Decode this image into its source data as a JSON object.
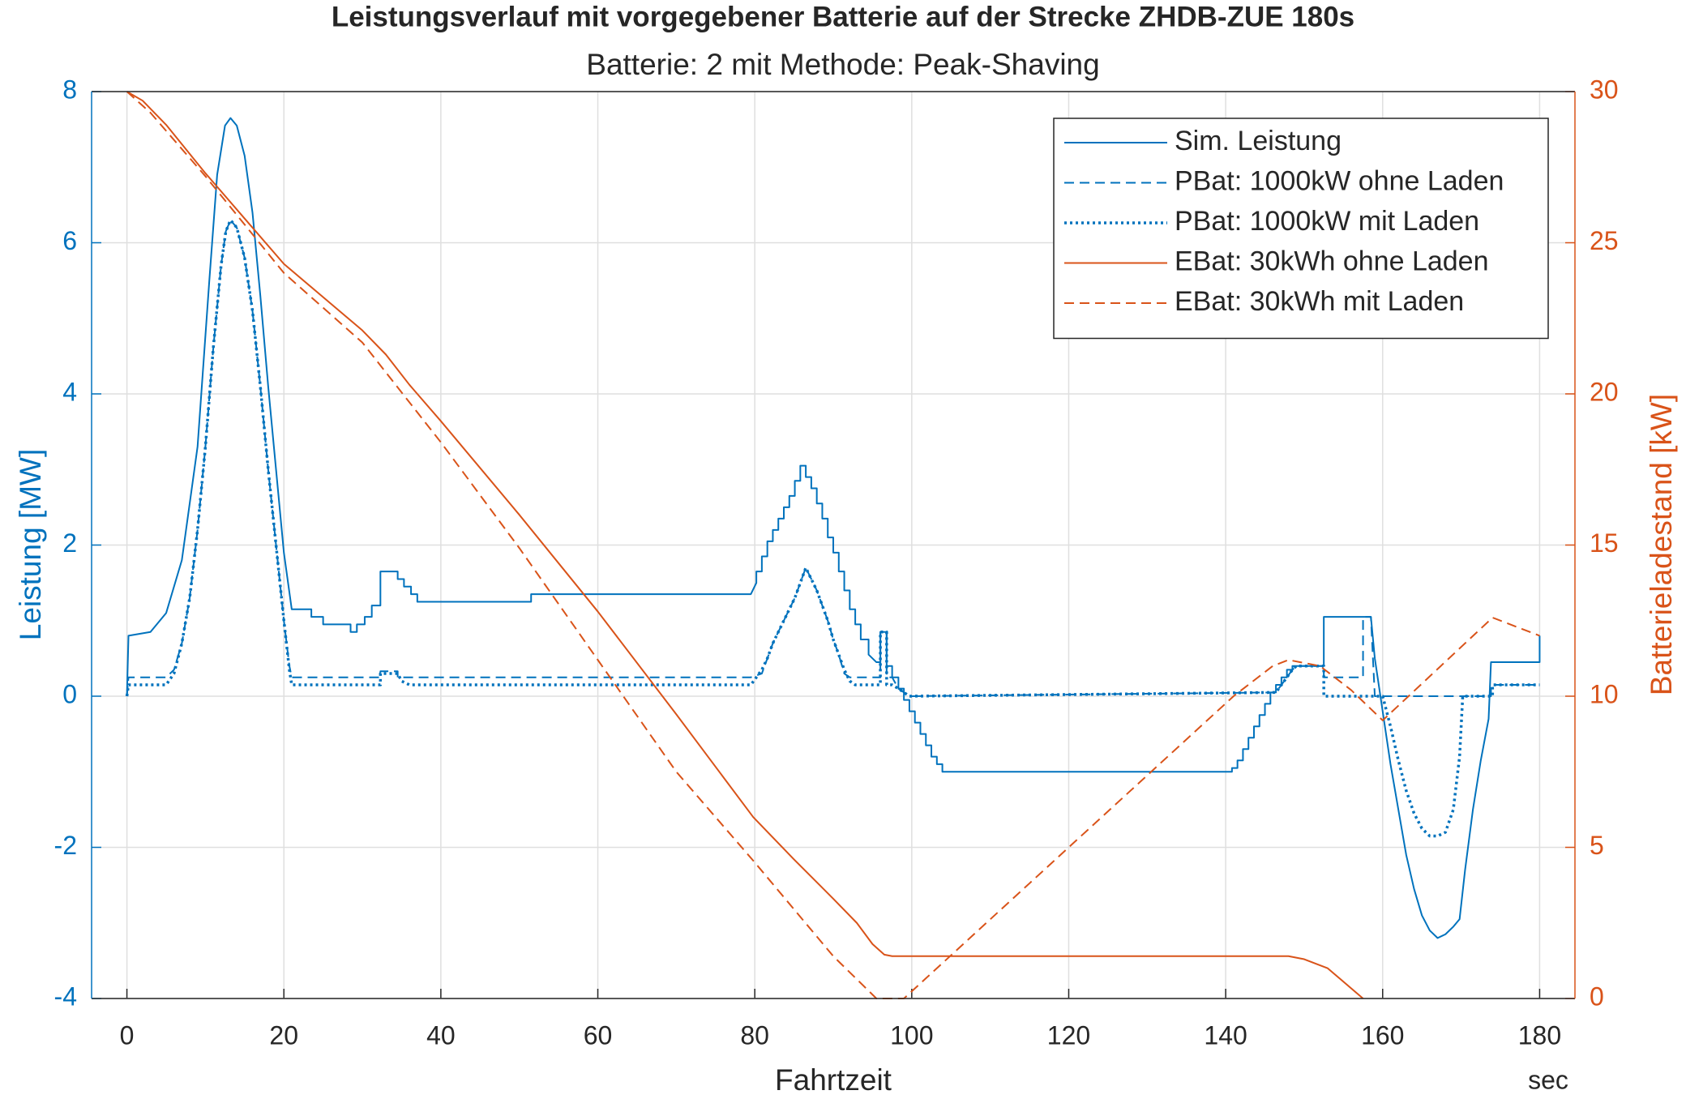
{
  "chart_data": {
    "type": "line",
    "title": "Leistungsverlauf mit vorgegebener Batterie auf der Strecke ZHDB-ZUE 180s",
    "subtitle": "Batterie: 2 mit Methode: Peak-Shaving",
    "xlabel": "Fahrtzeit",
    "xunit": "sec",
    "ylabel": "Leistung [MW]",
    "y2label": "Batterieladestand [kW]",
    "xlim": [
      -4.5,
      184.5
    ],
    "xticks": [
      0,
      20,
      40,
      60,
      80,
      100,
      120,
      140,
      160,
      180
    ],
    "ylim": [
      -4,
      8
    ],
    "yticks": [
      -4,
      -2,
      0,
      2,
      4,
      6,
      8
    ],
    "y2lim": [
      0,
      30
    ],
    "y2ticks": [
      0,
      5,
      10,
      15,
      20,
      25,
      30
    ],
    "grid": true,
    "legend": "northeast",
    "ycolor": "#0072bd",
    "y2color": "#d95319",
    "series": [
      {
        "name": "Sim. Leistung",
        "color": "#0072bd",
        "style": "solid",
        "x": [
          0,
          0.2,
          3,
          5,
          7,
          9,
          10.5,
          11.5,
          12.5,
          13.2,
          14,
          15,
          16,
          17,
          18,
          19,
          20,
          21,
          23.5,
          23.5,
          25,
          25,
          28.5,
          28.5,
          29.3,
          29.3,
          30.3,
          30.3,
          31.2,
          31.2,
          32.3,
          32.3,
          34.5,
          34.5,
          35.3,
          35.3,
          36.2,
          36.2,
          37,
          37,
          51.5,
          51.5,
          79.5,
          80.2,
          80.2,
          80.9,
          80.9,
          81.6,
          81.6,
          82.3,
          82.3,
          83,
          83,
          83.7,
          83.7,
          84.4,
          84.4,
          85.1,
          85.1,
          85.8,
          85.8,
          86.5,
          86.5,
          87.2,
          87.2,
          87.9,
          87.9,
          88.6,
          88.6,
          89.3,
          89.3,
          90,
          90,
          90.7,
          90.7,
          91.4,
          91.4,
          92.1,
          92.1,
          92.8,
          92.8,
          93.5,
          93.5,
          94.5,
          94.5,
          95.5,
          96,
          96,
          96.8,
          96.8,
          97.5,
          97.5,
          98.3,
          98.3,
          99,
          99,
          99.7,
          99.7,
          100.4,
          100.4,
          101.1,
          101.1,
          101.8,
          101.8,
          102.5,
          102.5,
          103.2,
          103.2,
          103.9,
          103.9,
          140.8,
          140.8,
          141.5,
          141.5,
          142.2,
          142.2,
          142.9,
          142.9,
          143.6,
          143.6,
          144.3,
          144.3,
          145,
          145,
          145.7,
          145.7,
          146.4,
          146.4,
          147.1,
          147.1,
          147.8,
          147.8,
          148.5,
          148.5,
          152.5,
          152.5,
          158.5,
          159,
          160,
          161,
          162,
          163,
          164,
          165,
          166,
          167,
          168,
          169,
          169.8,
          170.5,
          171.5,
          172.5,
          173.5,
          173.8,
          180,
          180
        ],
        "values": [
          0,
          0.8,
          0.85,
          1.1,
          1.8,
          3.3,
          5.5,
          6.9,
          7.55,
          7.65,
          7.55,
          7.15,
          6.4,
          5.3,
          4.1,
          3.0,
          1.9,
          1.15,
          1.15,
          1.05,
          1.05,
          0.95,
          0.95,
          0.85,
          0.85,
          0.95,
          0.95,
          1.05,
          1.05,
          1.2,
          1.2,
          1.65,
          1.65,
          1.55,
          1.55,
          1.45,
          1.45,
          1.35,
          1.35,
          1.25,
          1.25,
          1.35,
          1.35,
          1.5,
          1.65,
          1.65,
          1.85,
          1.85,
          2.05,
          2.05,
          2.2,
          2.2,
          2.35,
          2.35,
          2.5,
          2.5,
          2.65,
          2.65,
          2.85,
          2.85,
          3.05,
          3.05,
          2.9,
          2.9,
          2.75,
          2.75,
          2.55,
          2.55,
          2.35,
          2.35,
          2.1,
          2.1,
          1.9,
          1.9,
          1.65,
          1.65,
          1.4,
          1.4,
          1.15,
          1.15,
          0.95,
          0.95,
          0.75,
          0.75,
          0.55,
          0.45,
          0.45,
          0.85,
          0.85,
          0.4,
          0.4,
          0.25,
          0.25,
          0.1,
          0.1,
          -0.05,
          -0.05,
          -0.2,
          -0.2,
          -0.35,
          -0.35,
          -0.5,
          -0.5,
          -0.65,
          -0.65,
          -0.8,
          -0.8,
          -0.9,
          -0.9,
          -1.0,
          -1.0,
          -0.95,
          -0.95,
          -0.85,
          -0.85,
          -0.7,
          -0.7,
          -0.55,
          -0.55,
          -0.4,
          -0.4,
          -0.25,
          -0.25,
          -0.1,
          -0.1,
          0.05,
          0.05,
          0.15,
          0.15,
          0.25,
          0.25,
          0.35,
          0.35,
          0.4,
          0.4,
          1.05,
          1.05,
          0.5,
          -0.2,
          -0.9,
          -1.5,
          -2.1,
          -2.55,
          -2.9,
          -3.1,
          -3.2,
          -3.15,
          -3.05,
          -2.95,
          -2.3,
          -1.5,
          -0.85,
          -0.3,
          0.45,
          0.45,
          0.8
        ]
      },
      {
        "name": "PBat: 1000kW ohne Laden",
        "color": "#0072bd",
        "style": "dashed",
        "x": [
          0,
          0.2,
          5,
          6,
          7,
          8,
          9,
          10,
          11,
          12,
          12.6,
          13.2,
          14,
          15,
          16,
          17,
          18,
          19,
          20,
          20.7,
          21,
          32.3,
          32.3,
          34.5,
          34.5,
          79.5,
          80.9,
          81.6,
          82.3,
          83,
          83.7,
          84.4,
          85.1,
          85.8,
          86.5,
          87.2,
          87.9,
          88.6,
          89.3,
          90,
          90.7,
          91.4,
          92.1,
          96,
          96,
          96.8,
          96.8,
          97.5,
          98.3,
          99,
          99.7,
          146.4,
          147.1,
          147.8,
          148.5,
          149,
          152.5,
          152.5,
          157.5,
          157.5,
          158.5,
          159,
          173.8,
          173.8,
          180
        ],
        "values": [
          0,
          0.25,
          0.25,
          0.35,
          0.7,
          1.3,
          2.2,
          3.3,
          4.6,
          5.7,
          6.15,
          6.3,
          6.2,
          5.8,
          5.1,
          4.1,
          3.0,
          2.0,
          1.0,
          0.4,
          0.25,
          0.25,
          0.33,
          0.33,
          0.25,
          0.25,
          0.3,
          0.5,
          0.7,
          0.85,
          1.0,
          1.15,
          1.3,
          1.5,
          1.7,
          1.55,
          1.4,
          1.2,
          1.0,
          0.75,
          0.55,
          0.3,
          0.25,
          0.25,
          0.85,
          0.85,
          0.25,
          0.25,
          0.1,
          0.05,
          0,
          0.05,
          0.15,
          0.25,
          0.35,
          0.4,
          0.4,
          0.25,
          0.25,
          1.05,
          1.05,
          0,
          0,
          0.15,
          0.15
        ]
      },
      {
        "name": "PBat: 1000kW mit Laden",
        "color": "#0072bd",
        "style": "dotted",
        "x": [
          0,
          0.2,
          5,
          6,
          7,
          8,
          9,
          10,
          11,
          12,
          12.6,
          13.2,
          14,
          15,
          16,
          17,
          18,
          19,
          20,
          20.7,
          21,
          32.3,
          32.3,
          34.5,
          35,
          36,
          79.5,
          80.2,
          80.9,
          81.6,
          82.3,
          83,
          83.7,
          84.4,
          85.1,
          85.8,
          86.5,
          87.2,
          87.9,
          88.6,
          89.3,
          90,
          90.7,
          91.4,
          92.1,
          92.8,
          96,
          96,
          96.8,
          96.8,
          97.5,
          98.3,
          99,
          99.7,
          146.4,
          147.1,
          147.8,
          148.5,
          149,
          152.5,
          152.5,
          160,
          161,
          162,
          163,
          164,
          165,
          166,
          167,
          168,
          169,
          169.8,
          170.2,
          174,
          174,
          180
        ],
        "values": [
          0,
          0.15,
          0.15,
          0.3,
          0.7,
          1.3,
          2.2,
          3.3,
          4.6,
          5.7,
          6.15,
          6.3,
          6.2,
          5.8,
          5.1,
          4.1,
          3.0,
          2.0,
          1.0,
          0.35,
          0.15,
          0.15,
          0.3,
          0.3,
          0.2,
          0.15,
          0.15,
          0.25,
          0.35,
          0.5,
          0.7,
          0.85,
          1.0,
          1.15,
          1.3,
          1.5,
          1.7,
          1.55,
          1.4,
          1.2,
          1.0,
          0.75,
          0.55,
          0.35,
          0.2,
          0.15,
          0.15,
          0.85,
          0.85,
          0.15,
          0.15,
          0.1,
          0.05,
          0,
          0.05,
          0.15,
          0.25,
          0.35,
          0.4,
          0.4,
          0,
          0,
          -0.4,
          -0.85,
          -1.25,
          -1.55,
          -1.75,
          -1.85,
          -1.85,
          -1.8,
          -1.5,
          -0.8,
          0,
          0,
          0.15,
          0.15
        ]
      },
      {
        "name": "EBat: 30kWh ohne Laden",
        "color": "#d95319",
        "style": "solid",
        "axis": "y2",
        "x": [
          0,
          2,
          5,
          10,
          15,
          20,
          25,
          30,
          33,
          36,
          40,
          50,
          60,
          70,
          79.8,
          85,
          90,
          93,
          95,
          96.5,
          97.5,
          148,
          150,
          153,
          157.5
        ],
        "values": [
          30,
          29.7,
          28.9,
          27.3,
          25.8,
          24.3,
          23.2,
          22.1,
          21.3,
          20.3,
          19.1,
          16.0,
          12.8,
          9.4,
          6.0,
          4.6,
          3.3,
          2.5,
          1.8,
          1.45,
          1.4,
          1.4,
          1.3,
          1.0,
          0
        ]
      },
      {
        "name": "EBat: 30kWh mit Laden",
        "color": "#d95319",
        "style": "dashed",
        "axis": "y2",
        "x": [
          0,
          3,
          10,
          20,
          30,
          40,
          50,
          60,
          70,
          80,
          90,
          95.5,
          99,
          120,
          141,
          146,
          148,
          152,
          156,
          160,
          174,
          180
        ],
        "values": [
          30,
          29.3,
          27.2,
          24.0,
          21.7,
          18.4,
          14.9,
          11.2,
          7.5,
          4.5,
          1.4,
          0,
          0,
          5.0,
          10.0,
          11.0,
          11.2,
          11.0,
          10.2,
          9.2,
          12.6,
          12.0
        ]
      }
    ]
  }
}
